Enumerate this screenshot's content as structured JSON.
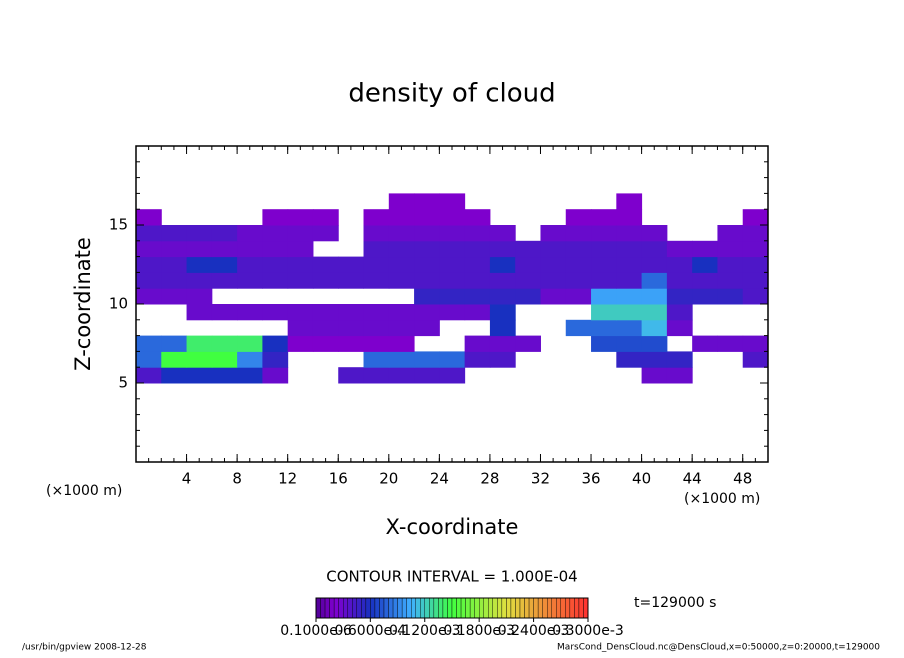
{
  "chart_data": {
    "type": "contour",
    "title": "density of cloud",
    "x_label": "X-coordinate",
    "y_label": "Z-coordinate",
    "unit_label": "(×1000 m)",
    "contour_interval": "CONTOUR INTERVAL = 1.000E-04",
    "time_label": "t=129000 s",
    "footer_left": "/usr/bin/gpview  2008-12-28",
    "footer_right": "MarsCond_DensCloud.nc@DensCloud,x=0:50000,z=0:20000,t=129000",
    "xlim": [
      0,
      50
    ],
    "ylim": [
      0,
      20
    ],
    "xticks": [
      4,
      8,
      12,
      16,
      20,
      24,
      28,
      32,
      36,
      40,
      44,
      48
    ],
    "yticks": [
      5,
      10,
      15
    ],
    "x_edges": [
      0,
      2,
      4,
      6,
      8,
      10,
      12,
      14,
      16,
      18,
      20,
      22,
      24,
      26,
      28,
      30,
      32,
      34,
      36,
      38,
      40,
      42,
      44,
      46,
      48,
      50
    ],
    "z_edges": [
      5,
      6,
      7,
      8,
      9,
      10,
      11,
      12,
      13,
      14,
      15,
      16,
      17
    ],
    "values": [
      [
        4e-05,
        6e-05,
        6e-05,
        6e-05,
        6e-05,
        3e-05,
        0,
        0,
        4e-05,
        4e-05,
        4e-05,
        4e-05,
        4e-05,
        0,
        0,
        0,
        0,
        0,
        0,
        0,
        3e-05,
        3e-05,
        0,
        0,
        0
      ],
      [
        8e-05,
        0.00015,
        0.00015,
        0.00015,
        9e-05,
        5e-05,
        0,
        0,
        0,
        8e-05,
        8e-05,
        8e-05,
        8e-05,
        4e-05,
        4e-05,
        0,
        0,
        0,
        0,
        5e-05,
        5e-05,
        5e-05,
        0,
        0,
        4e-05
      ],
      [
        8e-05,
        8e-05,
        0.00014,
        0.00014,
        0.00014,
        6e-05,
        2e-05,
        2e-05,
        2e-05,
        2e-05,
        2e-05,
        0,
        0,
        3e-05,
        3e-05,
        3e-05,
        0,
        0,
        7e-05,
        7e-05,
        7e-05,
        0,
        3e-05,
        3e-05,
        3e-05
      ],
      [
        0,
        0,
        0,
        0,
        0,
        0,
        3e-05,
        3e-05,
        3e-05,
        3e-05,
        3e-05,
        3e-05,
        0,
        0,
        6e-05,
        0,
        0,
        8e-05,
        8e-05,
        8e-05,
        0.00011,
        3e-05,
        0,
        0,
        0
      ],
      [
        0,
        0,
        3e-05,
        3e-05,
        3e-05,
        3e-05,
        3e-05,
        3e-05,
        3e-05,
        3e-05,
        3e-05,
        3e-05,
        3e-05,
        3e-05,
        6e-05,
        0,
        0,
        0,
        0.00012,
        0.00012,
        0.00012,
        4e-05,
        0,
        0,
        0
      ],
      [
        3e-05,
        3e-05,
        3e-05,
        0,
        0,
        0,
        0,
        0,
        0,
        0,
        0,
        5e-05,
        5e-05,
        5e-05,
        5e-05,
        5e-05,
        3e-05,
        3e-05,
        0.0001,
        0.0001,
        0.0001,
        5e-05,
        5e-05,
        5e-05,
        4e-05
      ],
      [
        4e-05,
        4e-05,
        4e-05,
        4e-05,
        4e-05,
        4e-05,
        4e-05,
        4e-05,
        4e-05,
        4e-05,
        4e-05,
        4e-05,
        4e-05,
        4e-05,
        4e-05,
        4e-05,
        4e-05,
        4e-05,
        4e-05,
        4e-05,
        8e-05,
        4e-05,
        4e-05,
        4e-05,
        4e-05
      ],
      [
        4e-05,
        4e-05,
        6e-05,
        6e-05,
        4e-05,
        4e-05,
        4e-05,
        4e-05,
        4e-05,
        4e-05,
        4e-05,
        4e-05,
        4e-05,
        4e-05,
        6e-05,
        4e-05,
        4e-05,
        4e-05,
        4e-05,
        4e-05,
        4e-05,
        4e-05,
        6e-05,
        4e-05,
        4e-05
      ],
      [
        3e-05,
        3e-05,
        3e-05,
        3e-05,
        3e-05,
        3e-05,
        3e-05,
        0,
        0,
        4e-05,
        4e-05,
        4e-05,
        4e-05,
        4e-05,
        4e-05,
        4e-05,
        4e-05,
        4e-05,
        4e-05,
        4e-05,
        4e-05,
        3e-05,
        3e-05,
        3e-05,
        3e-05
      ],
      [
        4e-05,
        4e-05,
        4e-05,
        4e-05,
        3e-05,
        3e-05,
        3e-05,
        3e-05,
        0,
        3e-05,
        3e-05,
        3e-05,
        3e-05,
        3e-05,
        3e-05,
        0,
        3e-05,
        3e-05,
        3e-05,
        3e-05,
        3e-05,
        0,
        0,
        3e-05,
        3e-05
      ],
      [
        2e-05,
        0,
        0,
        0,
        0,
        2e-05,
        2e-05,
        2e-05,
        0,
        2e-05,
        2e-05,
        2e-05,
        2e-05,
        2e-05,
        0,
        0,
        0,
        2e-05,
        2e-05,
        2e-05,
        0,
        0,
        0,
        0,
        2e-05
      ],
      [
        0,
        0,
        0,
        0,
        0,
        0,
        0,
        0,
        0,
        0,
        2e-05,
        2e-05,
        2e-05,
        0,
        0,
        0,
        0,
        0,
        0,
        2e-05,
        0,
        0,
        0,
        0,
        0
      ]
    ],
    "colorbar_ticks": [
      {
        "value": 1e-07,
        "label": "0.1000e-6"
      },
      {
        "value": 6e-05,
        "label": "0.6000e-4"
      },
      {
        "value": 0.00012,
        "label": "0.1200e-3"
      },
      {
        "value": 0.00018,
        "label": "0.1800e-3"
      },
      {
        "value": 0.00024,
        "label": "0.2400e-3"
      },
      {
        "value": 0.0003,
        "label": "0.3000e-3"
      }
    ]
  }
}
